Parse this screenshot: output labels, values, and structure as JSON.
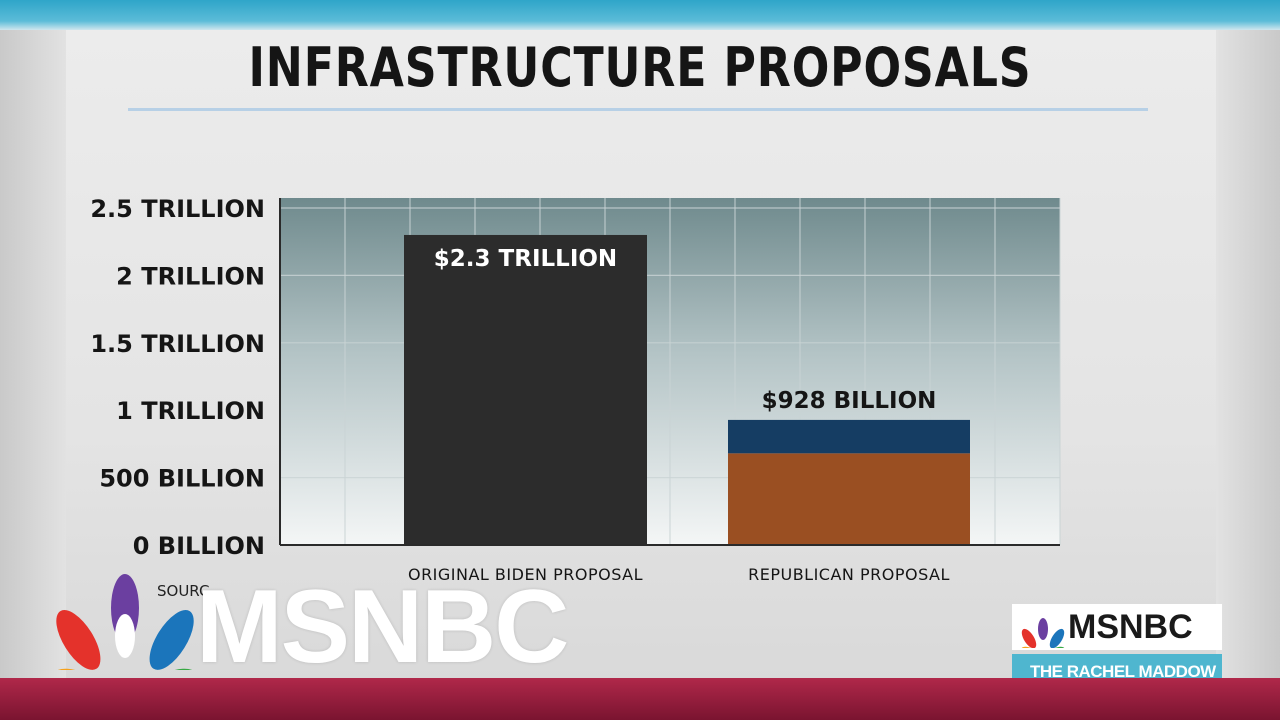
{
  "chart_data": {
    "type": "bar",
    "title": "INFRASTRUCTURE PROPOSALS",
    "categories": [
      "ORIGINAL BIDEN PROPOSAL",
      "REPUBLICAN PROPOSAL"
    ],
    "values": [
      2300,
      928
    ],
    "value_unit": "billion USD",
    "data_labels": [
      "$2.3 TRILLION",
      "$928 BILLION"
    ],
    "stacked_segments": [
      [
        {
          "value": 2300,
          "color": "#2c2c2c"
        }
      ],
      [
        {
          "value": 680,
          "color": "#9a4f22"
        },
        {
          "value": 248,
          "color": "#153d63"
        }
      ]
    ],
    "yticks": [
      0,
      500,
      1000,
      1500,
      2000,
      2500
    ],
    "ytick_labels": [
      "0 BILLION",
      "500 BILLION",
      "1 TRILLION",
      "1.5 TRILLION",
      "2 TRILLION",
      "2.5 TRILLION"
    ],
    "ylim": [
      0,
      2500
    ],
    "xlabel": "",
    "ylabel": "",
    "grid": true
  },
  "source_text": "SOURC",
  "branding": {
    "network_logo": "MSNBC",
    "corner_logo": "MSNBC",
    "show_name": "THE RACHEL MADDOW SHOW"
  },
  "colors": {
    "biden_bar": "#2c2c2c",
    "republican_bottom": "#9a4f22",
    "republican_top": "#153d63",
    "top_band": "#2fa5c9",
    "bottom_band": "#9d2040"
  }
}
